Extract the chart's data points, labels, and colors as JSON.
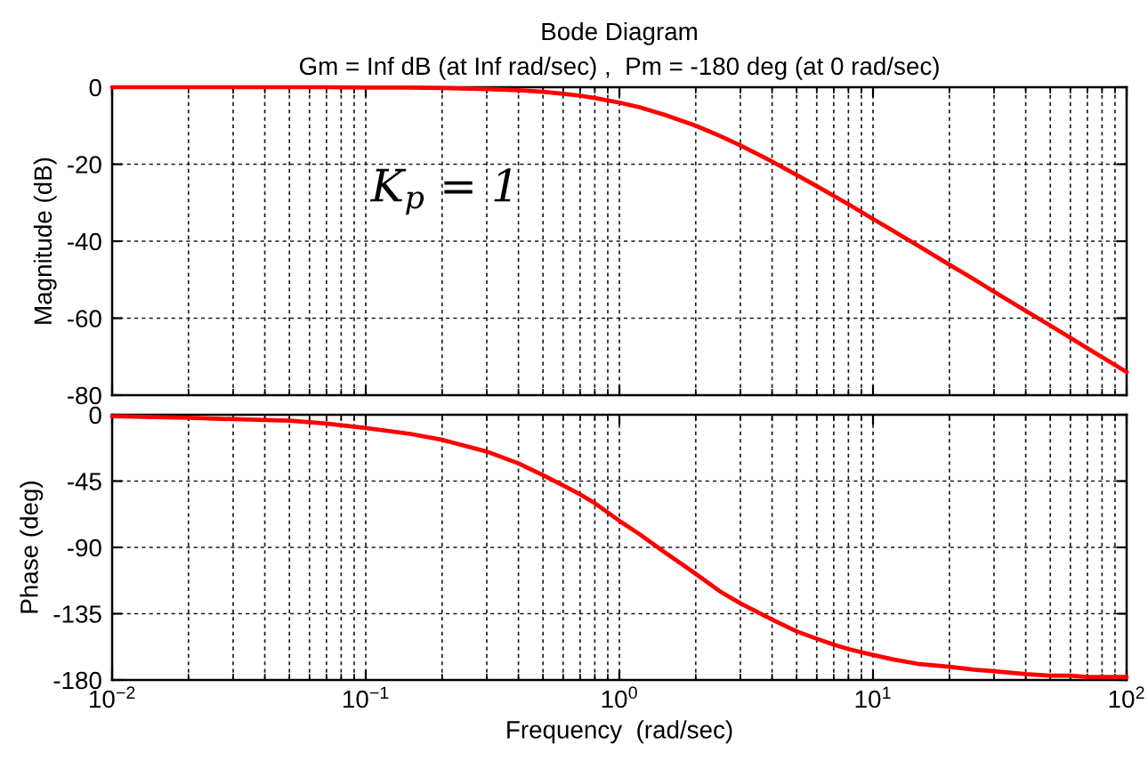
{
  "chart_data": [
    {
      "type": "line",
      "title": "Bode Diagram",
      "subtitle": "Gm = Inf dB (at Inf rad/sec) ,  Pm = -180 deg (at 0 rad/sec)",
      "ylabel": "Magnitude (dB)",
      "annotations": [
        "K$_{p}$ = 1"
      ],
      "x": [
        0.01,
        0.02,
        0.03,
        0.05,
        0.07,
        0.1,
        0.15,
        0.2,
        0.3,
        0.4,
        0.5,
        0.6,
        0.7,
        0.8,
        1,
        1.2,
        1.5,
        2,
        2.5,
        3,
        4,
        5,
        6,
        7,
        8,
        10,
        12,
        15,
        20,
        25,
        30,
        40,
        50,
        60,
        70,
        80,
        100
      ],
      "series": [
        {
          "color": "#ff0000",
          "values": [
            0,
            0,
            0,
            0,
            0,
            -0.1,
            -0.1,
            -0.2,
            -0.5,
            -0.8,
            -1.2,
            -1.7,
            -2.2,
            -2.8,
            -4.0,
            -5.2,
            -7.1,
            -10.0,
            -12.7,
            -15.1,
            -19.3,
            -22.8,
            -25.7,
            -28.2,
            -30.4,
            -34.2,
            -37.3,
            -41.1,
            -46.1,
            -49.9,
            -53.1,
            -58.1,
            -61.9,
            -65.1,
            -67.8,
            -70.1,
            -74.0
          ]
        }
      ],
      "log": "x",
      "xlim": [
        0.01,
        100
      ],
      "ylim": [
        -80,
        0
      ],
      "yticks": [
        -80,
        -60,
        -40,
        -20,
        0
      ],
      "grid": true,
      "tick_labels": "y"
    },
    {
      "type": "line",
      "xlabel": "Frequency  (rad/sec)",
      "ylabel": "Phase (deg)",
      "x": [
        0.01,
        0.02,
        0.03,
        0.05,
        0.07,
        0.1,
        0.15,
        0.2,
        0.3,
        0.4,
        0.5,
        0.6,
        0.7,
        0.8,
        1,
        1.2,
        1.5,
        2,
        2.5,
        3,
        4,
        5,
        6,
        7,
        8,
        10,
        12,
        15,
        20,
        25,
        30,
        40,
        50,
        60,
        70,
        80,
        100
      ],
      "series": [
        {
          "color": "#ff0000",
          "values": [
            -1,
            -2,
            -3,
            -4,
            -6,
            -9,
            -13,
            -17,
            -25,
            -33,
            -41,
            -48,
            -54,
            -60,
            -72,
            -81,
            -93,
            -108,
            -120,
            -128,
            -139,
            -147,
            -152,
            -156,
            -159,
            -163,
            -166,
            -169,
            -171,
            -173,
            -174,
            -176,
            -177,
            -177,
            -178,
            -178,
            -178
          ]
        }
      ],
      "log": "x",
      "xlim": [
        0.01,
        100
      ],
      "ylim": [
        -180,
        0
      ],
      "xticks": [
        {
          "value": 0.01,
          "label": "10$^{−2}$"
        },
        {
          "value": 0.02,
          "label": null
        },
        {
          "value": 0.03,
          "label": null
        },
        {
          "value": 0.04,
          "label": null
        },
        {
          "value": 0.05,
          "label": null
        },
        {
          "value": 0.06,
          "label": null
        },
        {
          "value": 0.07,
          "label": null
        },
        {
          "value": 0.08,
          "label": null
        },
        {
          "value": 0.09,
          "label": null
        },
        {
          "value": 0.1,
          "label": "10$^{−1}$"
        },
        {
          "value": 0.2,
          "label": null
        },
        {
          "value": 0.3,
          "label": null
        },
        {
          "value": 0.4,
          "label": null
        },
        {
          "value": 0.5,
          "label": null
        },
        {
          "value": 0.6,
          "label": null
        },
        {
          "value": 0.7,
          "label": null
        },
        {
          "value": 0.8,
          "label": null
        },
        {
          "value": 0.9,
          "label": null
        },
        {
          "value": 1,
          "label": "10$^{0}$"
        },
        {
          "value": 2,
          "label": null
        },
        {
          "value": 3,
          "label": null
        },
        {
          "value": 4,
          "label": null
        },
        {
          "value": 5,
          "label": null
        },
        {
          "value": 6,
          "label": null
        },
        {
          "value": 7,
          "label": null
        },
        {
          "value": 8,
          "label": null
        },
        {
          "value": 9,
          "label": null
        },
        {
          "value": 10,
          "label": "10$^{1}$"
        },
        {
          "value": 20,
          "label": null
        },
        {
          "value": 30,
          "label": null
        },
        {
          "value": 40,
          "label": null
        },
        {
          "value": 50,
          "label": null
        },
        {
          "value": 60,
          "label": null
        },
        {
          "value": 70,
          "label": null
        },
        {
          "value": 80,
          "label": null
        },
        {
          "value": 90,
          "label": null
        },
        {
          "value": 100,
          "label": "10$^{2}$"
        }
      ],
      "yticks": [
        -180,
        -135,
        -90,
        -45,
        0
      ],
      "grid": true
    }
  ]
}
